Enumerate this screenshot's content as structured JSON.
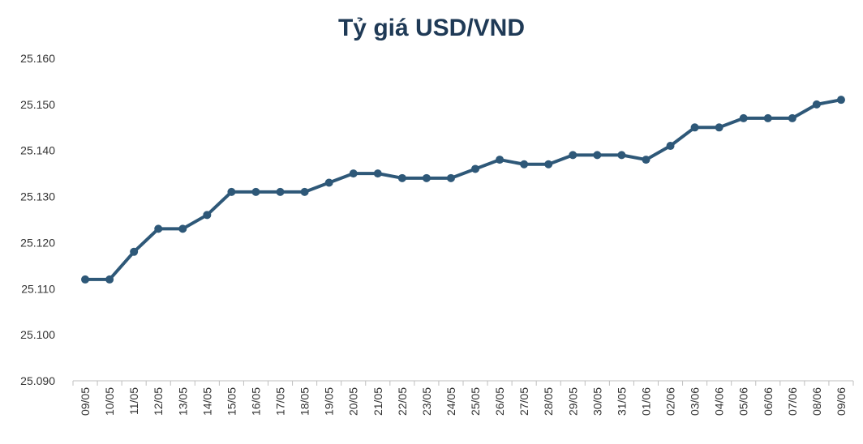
{
  "chart_data": {
    "type": "line",
    "title": "Tỷ giá USD/VND",
    "xlabel": "",
    "ylabel": "",
    "ylim": [
      25090,
      25160
    ],
    "yticks": [
      {
        "value": 25090,
        "label": "25.090"
      },
      {
        "value": 25100,
        "label": "25.100"
      },
      {
        "value": 25110,
        "label": "25.110"
      },
      {
        "value": 25120,
        "label": "25.120"
      },
      {
        "value": 25130,
        "label": "25.130"
      },
      {
        "value": 25140,
        "label": "25.140"
      },
      {
        "value": 25150,
        "label": "25.150"
      },
      {
        "value": 25160,
        "label": "25.160"
      }
    ],
    "grid": false,
    "legend": "none",
    "categories": [
      "09/05",
      "10/05",
      "11/05",
      "12/05",
      "13/05",
      "14/05",
      "15/05",
      "16/05",
      "17/05",
      "18/05",
      "19/05",
      "20/05",
      "21/05",
      "22/05",
      "23/05",
      "24/05",
      "25/05",
      "26/05",
      "27/05",
      "28/05",
      "29/05",
      "30/05",
      "31/05",
      "01/06",
      "02/06",
      "03/06",
      "04/06",
      "05/06",
      "06/06",
      "07/06",
      "08/06",
      "09/06"
    ],
    "series": [
      {
        "color": "#2e5878",
        "values": [
          25112,
          25112,
          25118,
          25123,
          25123,
          25126,
          25131,
          25131,
          25131,
          25131,
          25133,
          25135,
          25135,
          25134,
          25134,
          25134,
          25136,
          25138,
          25137,
          25137,
          25139,
          25139,
          25139,
          25138,
          25141,
          25145,
          25145,
          25147,
          25147,
          25147,
          25150,
          25151
        ]
      }
    ]
  }
}
